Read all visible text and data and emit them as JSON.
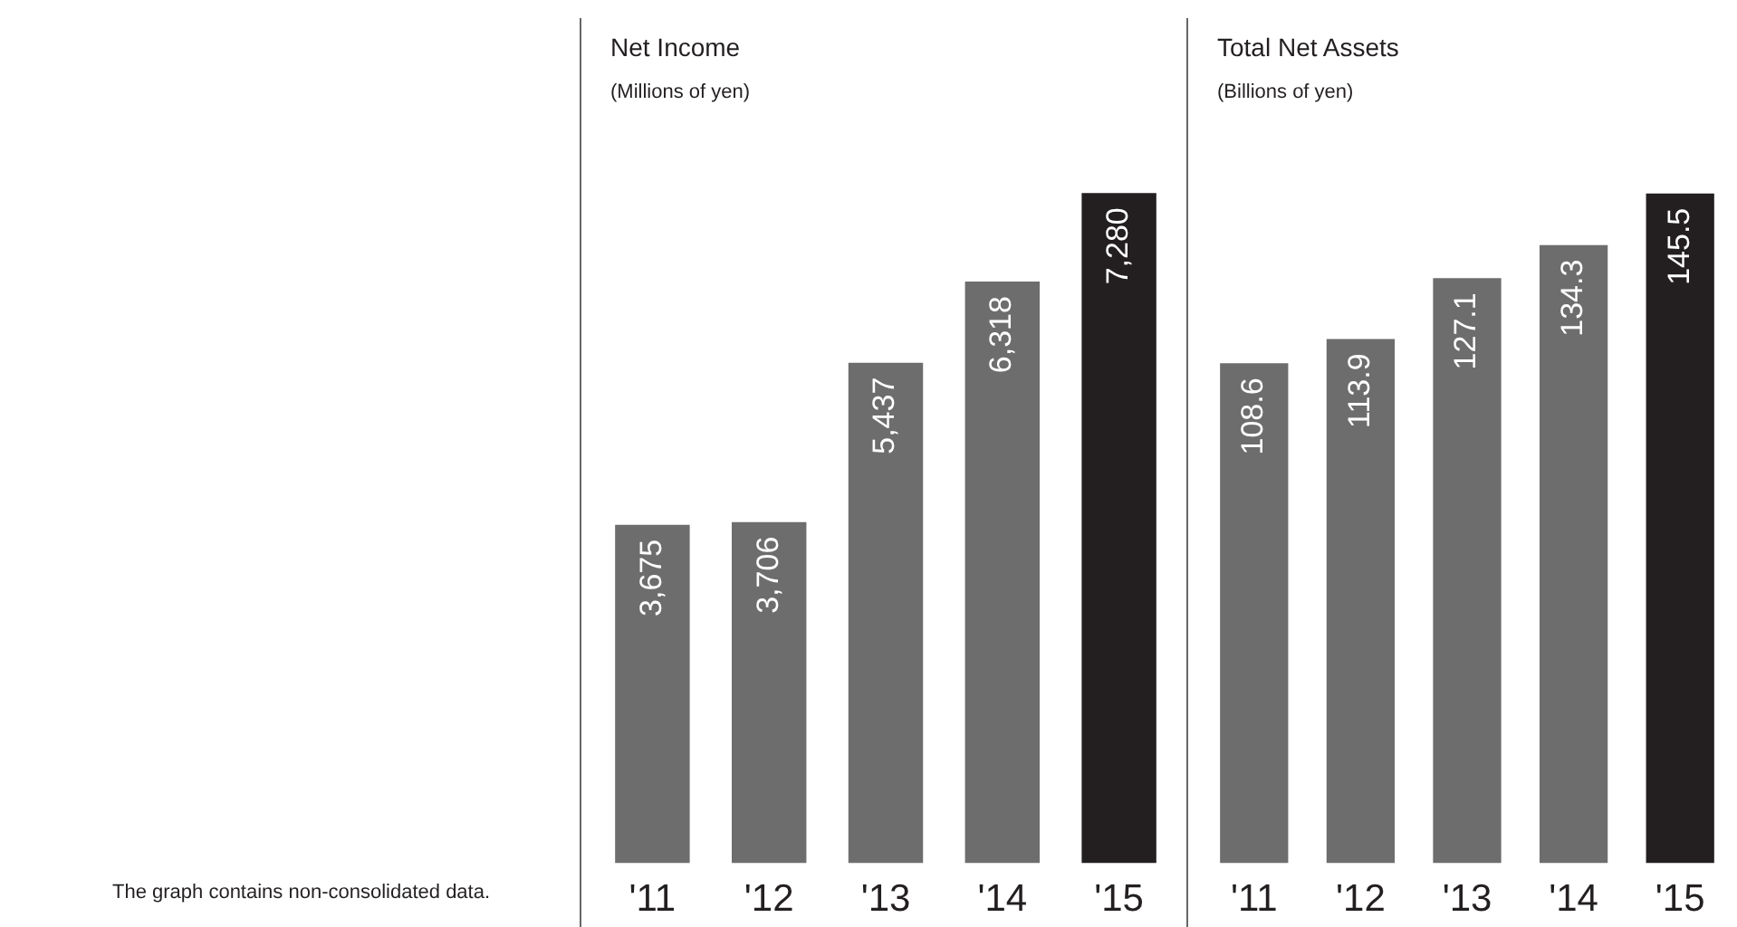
{
  "chart_data": [
    {
      "type": "bar",
      "title": "Net Income",
      "subtitle": "(Millions of yen)",
      "categories": [
        "'11",
        "'12",
        "'13",
        "'14",
        "'15"
      ],
      "values": [
        3675,
        3706,
        5437,
        6318,
        7280
      ],
      "colors": [
        "#6d6d6d",
        "#6d6d6d",
        "#6d6d6d",
        "#6d6d6d",
        "#231f20"
      ],
      "value_labels": [
        "3,675",
        "3,706",
        "5,437",
        "6,318",
        "7,280"
      ],
      "tick_labels": "x",
      "annotations": [
        "The graph contains non-consolidated data."
      ]
    },
    {
      "type": "bar",
      "title": "Total Net Assets",
      "subtitle": "(Billions of yen)",
      "categories": [
        "'11",
        "'12",
        "'13",
        "'14",
        "'15"
      ],
      "values": [
        108.6,
        113.9,
        127.1,
        134.3,
        145.5
      ],
      "colors": [
        "#6d6d6d",
        "#6d6d6d",
        "#6d6d6d",
        "#6d6d6d",
        "#231f20"
      ],
      "data_labels": true,
      "tick_labels": "x"
    }
  ]
}
